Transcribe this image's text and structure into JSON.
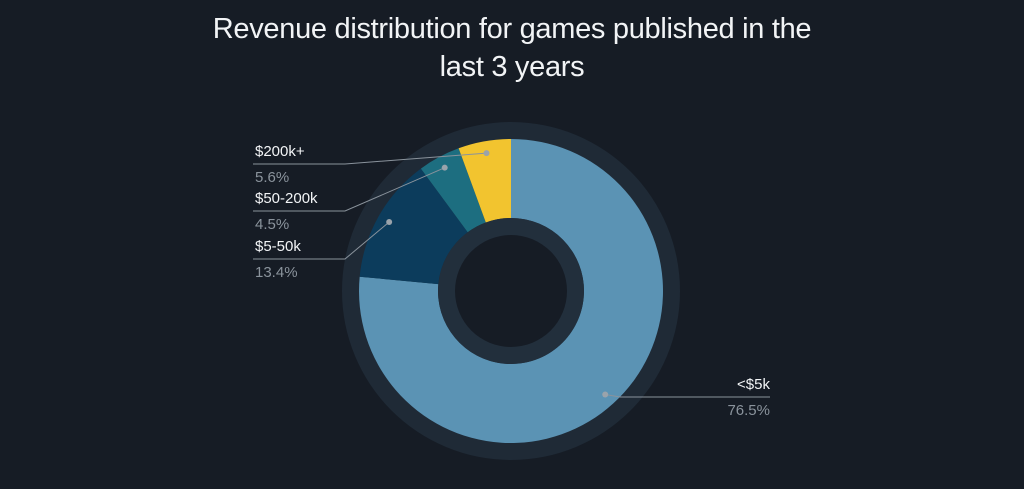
{
  "chart_data": {
    "type": "donut",
    "title": "Revenue distribution for games published in the last 3 years",
    "categories": [
      "<$5k",
      "$5-50k",
      "$50-200k",
      "$200k+"
    ],
    "series": [
      {
        "values": [
          76.5,
          13.4,
          4.5,
          5.6
        ],
        "value_labels": [
          "76.5%",
          "13.4%",
          "4.5%",
          "5.6%"
        ],
        "colors": [
          "#5b93b4",
          "#0c3c5c",
          "#1d6e80",
          "#f2c42f"
        ]
      }
    ]
  }
}
